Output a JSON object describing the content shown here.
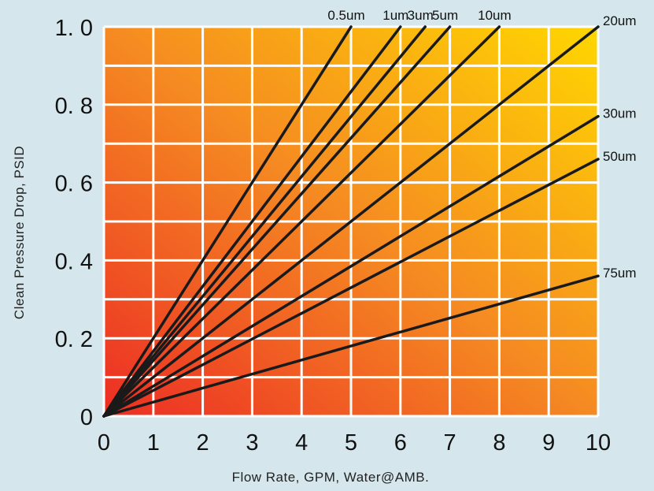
{
  "chart_data": {
    "type": "line",
    "title": "",
    "xlabel": "Flow Rate, GPM, Water@AMB.",
    "ylabel": "Clean Pressure Drop, PSID",
    "xlim": [
      0,
      10
    ],
    "ylim": [
      0,
      1.0
    ],
    "grid": true,
    "x_ticks": [
      "0",
      "1",
      "2",
      "3",
      "4",
      "5",
      "6",
      "7",
      "8",
      "9",
      "10"
    ],
    "y_ticks": [
      "0",
      "0. 2",
      "0. 4",
      "0. 6",
      "0. 8",
      "1. 0"
    ],
    "series": [
      {
        "name": "0.5um",
        "x": [
          0,
          5
        ],
        "y": [
          0,
          1.0
        ]
      },
      {
        "name": "1um",
        "x": [
          0,
          6
        ],
        "y": [
          0,
          1.0
        ]
      },
      {
        "name": "3um",
        "x": [
          0,
          6.5
        ],
        "y": [
          0,
          1.0
        ]
      },
      {
        "name": "5um",
        "x": [
          0,
          7
        ],
        "y": [
          0,
          1.0
        ]
      },
      {
        "name": "10um",
        "x": [
          0,
          8
        ],
        "y": [
          0,
          1.0
        ]
      },
      {
        "name": "20um",
        "x": [
          0,
          10
        ],
        "y": [
          0,
          1.0
        ]
      },
      {
        "name": "30um",
        "x": [
          0,
          10
        ],
        "y": [
          0,
          0.77
        ]
      },
      {
        "name": "50um",
        "x": [
          0,
          10
        ],
        "y": [
          0,
          0.66
        ]
      },
      {
        "name": "75um",
        "x": [
          0,
          10
        ],
        "y": [
          0,
          0.36
        ]
      }
    ],
    "label_position": [
      "top",
      "top",
      "top",
      "top",
      "top",
      "right",
      "right",
      "right",
      "right"
    ]
  },
  "colors": {
    "gradient_start": "#ec2d24",
    "gradient_mid": "#f58a22",
    "gradient_end": "#ffd700",
    "grid": "#ffffff",
    "line": "#1a1a1a",
    "background": "#d5e7ed"
  }
}
